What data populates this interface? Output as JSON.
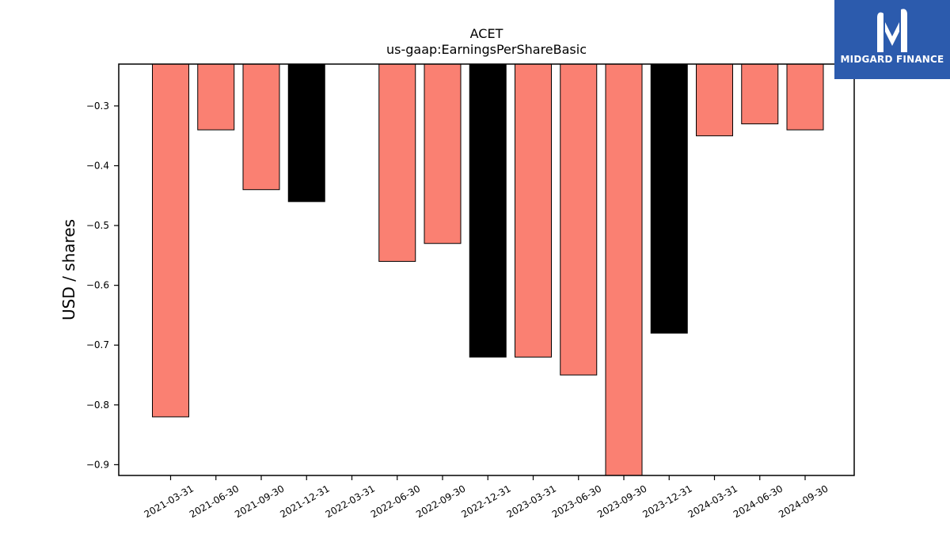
{
  "logo": {
    "text": "MIDGARD FINANCE",
    "icon": "midgard-m-logo-icon",
    "background": "#2c5bad"
  },
  "chart_data": {
    "type": "bar",
    "title": "ACET",
    "subtitle": "us-gaap:EarningsPerShareBasic",
    "xlabel": "",
    "ylabel": "USD / shares",
    "categories": [
      "2021-03-31",
      "2021-06-30",
      "2021-09-30",
      "2021-12-31",
      "2022-03-31",
      "2022-06-30",
      "2022-09-30",
      "2022-12-31",
      "2023-03-31",
      "2023-06-30",
      "2023-09-30",
      "2023-12-31",
      "2024-03-31",
      "2024-06-30",
      "2024-09-30"
    ],
    "values": [
      -0.82,
      -0.34,
      -0.44,
      -0.46,
      null,
      -0.56,
      -0.53,
      -0.72,
      -0.72,
      -0.75,
      -0.92,
      -0.68,
      -0.35,
      -0.33,
      -0.34
    ],
    "bar_colors": [
      "#fa8072",
      "#fa8072",
      "#fa8072",
      "#000000",
      null,
      "#fa8072",
      "#fa8072",
      "#000000",
      "#fa8072",
      "#fa8072",
      "#fa8072",
      "#000000",
      "#fa8072",
      "#fa8072",
      "#fa8072"
    ],
    "ylim": [
      -0.918,
      -0.23
    ],
    "yticks": [
      -0.3,
      -0.4,
      -0.5,
      -0.6,
      -0.7,
      -0.8,
      -0.9
    ],
    "ytick_labels": [
      "−0.3",
      "−0.4",
      "−0.5",
      "−0.6",
      "−0.7",
      "−0.8",
      "−0.9"
    ],
    "grid": false,
    "colors": {
      "quarter": "#fa8072",
      "year_end": "#000000"
    }
  }
}
